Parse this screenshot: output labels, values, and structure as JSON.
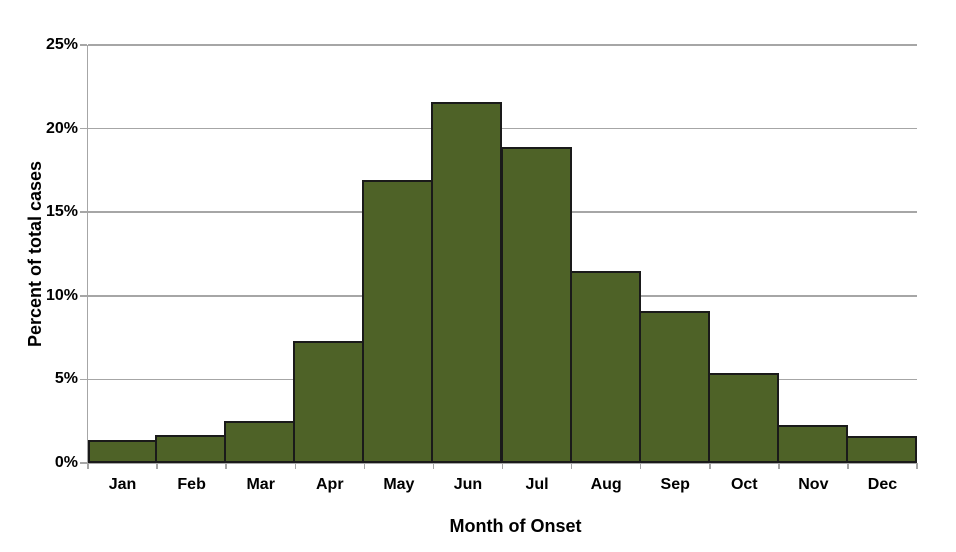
{
  "chart_data": {
    "type": "bar",
    "title": "",
    "categories": [
      "Jan",
      "Feb",
      "Mar",
      "Apr",
      "May",
      "Jun",
      "Jul",
      "Aug",
      "Sep",
      "Oct",
      "Nov",
      "Dec"
    ],
    "values": [
      1.4,
      1.7,
      2.5,
      7.3,
      16.9,
      21.6,
      18.9,
      11.5,
      9.1,
      5.4,
      2.3,
      1.6
    ],
    "xlabel": "Month of Onset",
    "ylabel": "Percent of total cases",
    "ylim": [
      0,
      25
    ],
    "ytick_values": [
      0,
      5,
      10,
      15,
      20,
      25
    ],
    "ytick_labels": [
      "0%",
      "5%",
      "10%",
      "15%",
      "20%",
      "25%"
    ],
    "grid": true,
    "legend": "none",
    "bar_gap": 0,
    "colors": {
      "bar_fill": "#4E6227",
      "bar_border": "#1A1A1A",
      "gridline": "#A6A6A6",
      "axis": "#A6A6A6",
      "text": "#000000",
      "background": "#FFFFFF"
    }
  }
}
